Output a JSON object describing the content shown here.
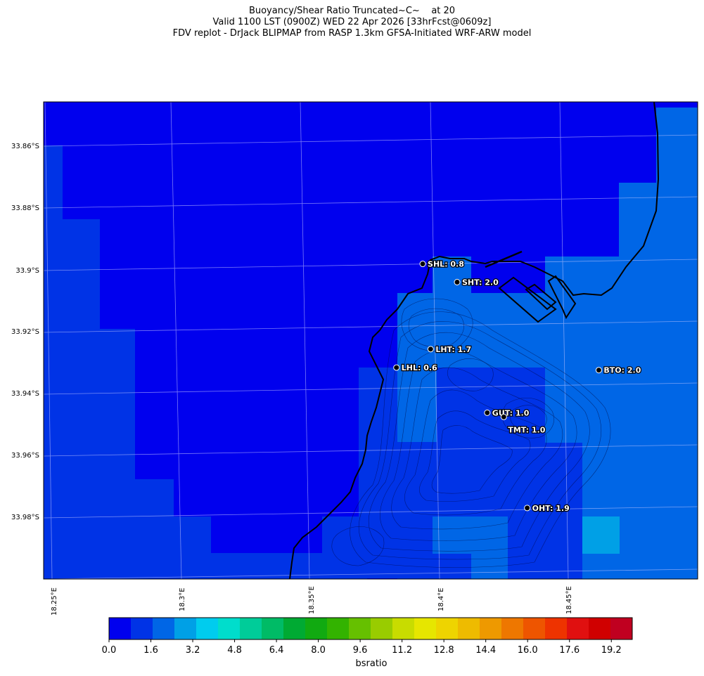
{
  "title": {
    "line1": "Buoyancy/Shear Ratio Truncated~C~    at 20",
    "line2": "Valid 1100 LST (0900Z) WED 22 Apr 2026 [33hrFcst@0609z]",
    "line3": "FDV replot - DrJack BLIPMAP from RASP 1.3km GFSA-Initiated WRF-ARW model"
  },
  "lat_labels": [
    "33.86°S",
    "33.88°S",
    "33.9°S",
    "33.92°S",
    "33.94°S",
    "33.96°S",
    "33.98°S"
  ],
  "lon_labels": [
    "18.25°E",
    "18.3°E",
    "18.35°E",
    "18.4°E",
    "18.45°E"
  ],
  "stations": [
    {
      "id": "SHL",
      "label": "SHL: 0.8",
      "lon": 18.3851,
      "lat": -33.9081
    },
    {
      "id": "SHT",
      "label": "SHT: 2.0",
      "lon": 18.3973,
      "lat": -33.9149
    },
    {
      "id": "LHT",
      "label": "LHT: 1.7",
      "lon": 18.3837,
      "lat": -33.9355
    },
    {
      "id": "LHL",
      "label": "LHL: 0.6",
      "lon": 18.3697,
      "lat": -33.9404
    },
    {
      "id": "BTO",
      "label": "BTO: 2.0",
      "lon": 18.4468,
      "lat": -33.947
    },
    {
      "id": "GUT",
      "label": "GUT: 1.0",
      "lon": 18.402,
      "lat": -33.9574
    },
    {
      "id": "TMT",
      "label": "TMT: 1.0",
      "lon": 18.4081,
      "lat": -33.9592
    },
    {
      "id": "OHT",
      "label": "OHT: 1.9",
      "lon": 18.4123,
      "lat": -33.9889
    }
  ],
  "colorbar": {
    "label": "bsratio",
    "tick_labels": [
      "0.0",
      "1.6",
      "3.2",
      "4.8",
      "6.4",
      "8.0",
      "9.6",
      "11.2",
      "12.8",
      "14.4",
      "16.0",
      "17.6",
      "19.2"
    ],
    "min": 0.0,
    "max": 20.0,
    "colors": [
      "#0000ee",
      "#0033e6",
      "#0066e6",
      "#00a0e6",
      "#00ccee",
      "#00ddcc",
      "#00cc99",
      "#00bb66",
      "#00aa33",
      "#11aa11",
      "#33b300",
      "#66c000",
      "#99cc00",
      "#c8dc00",
      "#e6e600",
      "#eed400",
      "#eebb00",
      "#ee9900",
      "#ee7700",
      "#ee5500",
      "#ee3300",
      "#e01010",
      "#d00000",
      "#c00020"
    ]
  },
  "legend_colors": {
    "deep": "#0000ee",
    "mid": "#0033e6",
    "light": "#0066e6",
    "cyan": "#00a0e6"
  }
}
